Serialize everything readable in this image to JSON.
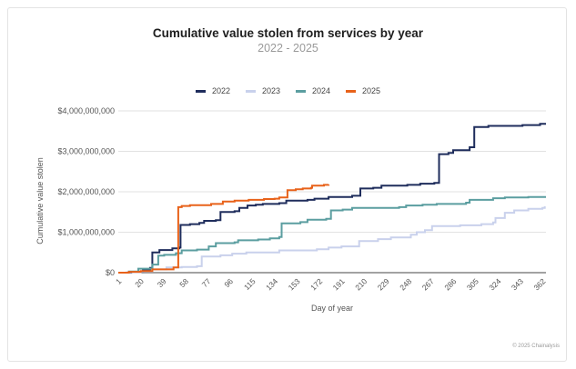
{
  "chart_data": {
    "type": "line",
    "title": "Cumulative value stolen from services by year",
    "subtitle": "2022 - 2025",
    "xlabel": "Day of year",
    "ylabel": "Cumulative value stolen",
    "xlim": [
      1,
      365
    ],
    "ylim": [
      0,
      4000000000
    ],
    "ytick_values": [
      0,
      1000000000,
      2000000000,
      3000000000,
      4000000000
    ],
    "ytick_labels": [
      "$0",
      "$1,000,000,000",
      "$2,000,000,000",
      "$3,000,000,000",
      "$4,000,000,000"
    ],
    "xticks": [
      1,
      20,
      39,
      58,
      77,
      96,
      115,
      134,
      153,
      172,
      191,
      210,
      229,
      248,
      267,
      286,
      305,
      324,
      343,
      362
    ],
    "legend_position": "top-center",
    "grid": "horizontal",
    "series": [
      {
        "name": "2022",
        "color": "#1f2d5c",
        "points": [
          [
            1,
            0
          ],
          [
            12,
            20000000
          ],
          [
            22,
            60000000
          ],
          [
            28,
            120000000
          ],
          [
            30,
            500000000
          ],
          [
            36,
            560000000
          ],
          [
            47,
            600000000
          ],
          [
            53,
            620000000
          ],
          [
            54,
            1180000000
          ],
          [
            62,
            1200000000
          ],
          [
            70,
            1230000000
          ],
          [
            74,
            1280000000
          ],
          [
            84,
            1300000000
          ],
          [
            88,
            1500000000
          ],
          [
            100,
            1520000000
          ],
          [
            104,
            1600000000
          ],
          [
            111,
            1660000000
          ],
          [
            118,
            1680000000
          ],
          [
            124,
            1700000000
          ],
          [
            138,
            1720000000
          ],
          [
            144,
            1780000000
          ],
          [
            162,
            1800000000
          ],
          [
            168,
            1830000000
          ],
          [
            180,
            1870000000
          ],
          [
            200,
            1900000000
          ],
          [
            207,
            2080000000
          ],
          [
            218,
            2100000000
          ],
          [
            225,
            2150000000
          ],
          [
            247,
            2170000000
          ],
          [
            258,
            2200000000
          ],
          [
            270,
            2220000000
          ],
          [
            274,
            2930000000
          ],
          [
            282,
            2960000000
          ],
          [
            286,
            3030000000
          ],
          [
            300,
            3100000000
          ],
          [
            304,
            3600000000
          ],
          [
            316,
            3630000000
          ],
          [
            345,
            3650000000
          ],
          [
            360,
            3680000000
          ],
          [
            365,
            3680000000
          ]
        ]
      },
      {
        "name": "2023",
        "color": "#c9d1ec",
        "points": [
          [
            1,
            0
          ],
          [
            8,
            10000000
          ],
          [
            20,
            30000000
          ],
          [
            30,
            80000000
          ],
          [
            42,
            130000000
          ],
          [
            55,
            140000000
          ],
          [
            68,
            160000000
          ],
          [
            72,
            400000000
          ],
          [
            88,
            430000000
          ],
          [
            98,
            470000000
          ],
          [
            110,
            500000000
          ],
          [
            138,
            550000000
          ],
          [
            170,
            580000000
          ],
          [
            180,
            620000000
          ],
          [
            191,
            650000000
          ],
          [
            206,
            780000000
          ],
          [
            222,
            830000000
          ],
          [
            233,
            870000000
          ],
          [
            250,
            940000000
          ],
          [
            255,
            1000000000
          ],
          [
            262,
            1050000000
          ],
          [
            268,
            1150000000
          ],
          [
            292,
            1170000000
          ],
          [
            310,
            1200000000
          ],
          [
            320,
            1240000000
          ],
          [
            322,
            1350000000
          ],
          [
            330,
            1480000000
          ],
          [
            338,
            1540000000
          ],
          [
            350,
            1580000000
          ],
          [
            362,
            1600000000
          ],
          [
            364,
            1640000000
          ]
        ]
      },
      {
        "name": "2024",
        "color": "#5b9ea0",
        "points": [
          [
            1,
            0
          ],
          [
            10,
            30000000
          ],
          [
            18,
            100000000
          ],
          [
            30,
            200000000
          ],
          [
            35,
            420000000
          ],
          [
            40,
            440000000
          ],
          [
            50,
            480000000
          ],
          [
            55,
            550000000
          ],
          [
            68,
            570000000
          ],
          [
            78,
            650000000
          ],
          [
            84,
            730000000
          ],
          [
            100,
            750000000
          ],
          [
            103,
            800000000
          ],
          [
            120,
            820000000
          ],
          [
            130,
            850000000
          ],
          [
            138,
            880000000
          ],
          [
            140,
            1220000000
          ],
          [
            156,
            1250000000
          ],
          [
            162,
            1310000000
          ],
          [
            178,
            1330000000
          ],
          [
            182,
            1540000000
          ],
          [
            192,
            1560000000
          ],
          [
            200,
            1600000000
          ],
          [
            240,
            1620000000
          ],
          [
            246,
            1660000000
          ],
          [
            260,
            1680000000
          ],
          [
            272,
            1700000000
          ],
          [
            297,
            1730000000
          ],
          [
            300,
            1800000000
          ],
          [
            320,
            1840000000
          ],
          [
            330,
            1860000000
          ],
          [
            350,
            1870000000
          ],
          [
            365,
            1870000000
          ]
        ]
      },
      {
        "name": "2025",
        "color": "#e8621a",
        "points": [
          [
            1,
            0
          ],
          [
            10,
            20000000
          ],
          [
            20,
            40000000
          ],
          [
            30,
            80000000
          ],
          [
            48,
            130000000
          ],
          [
            52,
            1620000000
          ],
          [
            55,
            1650000000
          ],
          [
            62,
            1670000000
          ],
          [
            80,
            1700000000
          ],
          [
            90,
            1760000000
          ],
          [
            100,
            1780000000
          ],
          [
            112,
            1800000000
          ],
          [
            125,
            1820000000
          ],
          [
            134,
            1830000000
          ],
          [
            138,
            1860000000
          ],
          [
            145,
            2040000000
          ],
          [
            152,
            2060000000
          ],
          [
            158,
            2080000000
          ],
          [
            165,
            2100000000
          ],
          [
            166,
            2150000000
          ],
          [
            176,
            2170000000
          ],
          [
            180,
            2180000000
          ]
        ]
      }
    ]
  },
  "footer": {
    "copyright": "© 2025 Chainalysis"
  }
}
